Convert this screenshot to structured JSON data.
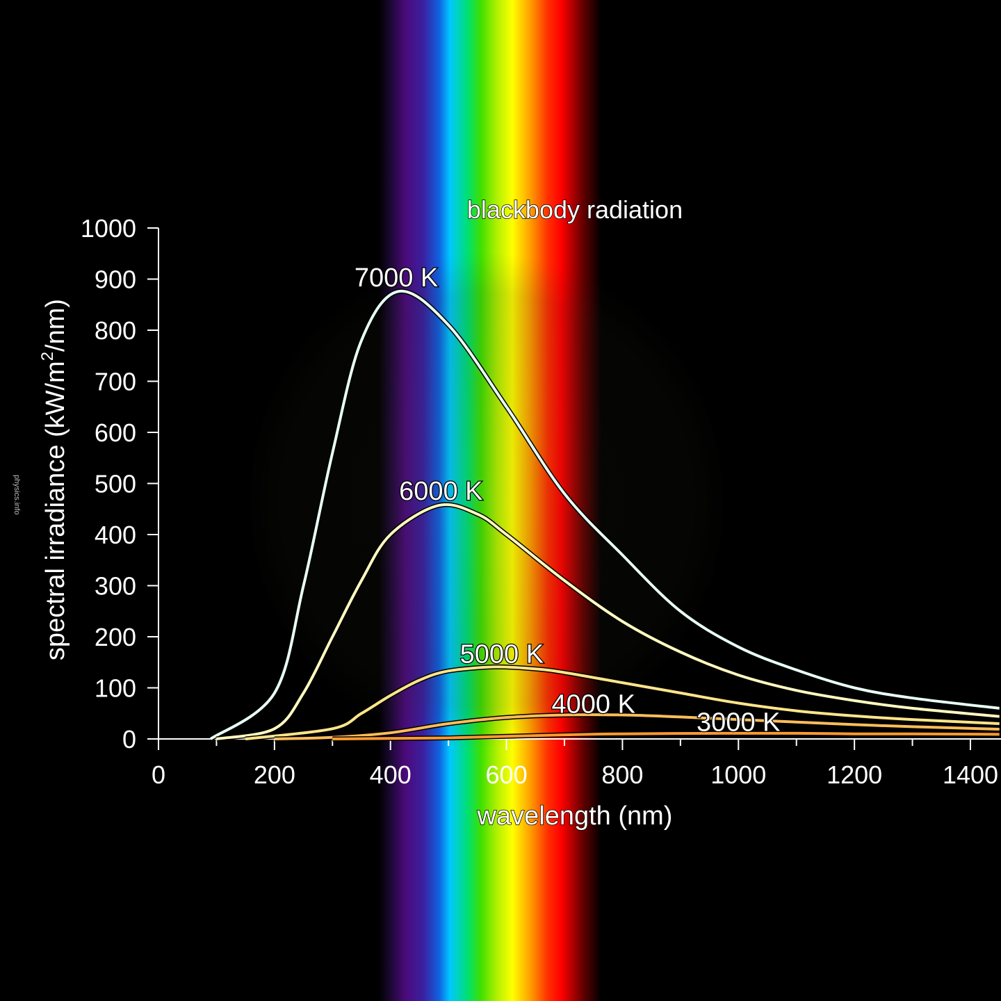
{
  "credit": "physics.info",
  "colors": {
    "background": "#000000",
    "axis": "#ffffff",
    "series_7000": "#e8fff4",
    "series_6000": "#fff9c0",
    "series_5000": "#ffe58a",
    "series_4000": "#ffbd5a",
    "series_3000": "#ff9a30"
  },
  "chart_data": {
    "type": "line",
    "title": "blackbody radiation",
    "xlabel": "wavelength (nm)",
    "ylabel_main": "spectral irradiance (kW/m",
    "ylabel_sup": "2",
    "ylabel_tail": "/nm)",
    "xlim": [
      0,
      1450
    ],
    "ylim": [
      0,
      1000
    ],
    "xticks": [
      0,
      200,
      400,
      600,
      800,
      1000,
      1200,
      1400
    ],
    "xtick_labels": [
      "0",
      "200",
      "400",
      "600",
      "800",
      "1000",
      "1200",
      "1400"
    ],
    "xticks_minor": [
      100,
      300,
      500,
      700,
      900,
      1100,
      1300
    ],
    "yticks": [
      0,
      100,
      200,
      300,
      400,
      500,
      600,
      700,
      800,
      900,
      1000
    ],
    "ytick_labels": [
      "0",
      "100",
      "200",
      "300",
      "400",
      "500",
      "600",
      "700",
      "800",
      "900",
      "1000"
    ],
    "series": [
      {
        "name": "7000 K",
        "temperature": 7000,
        "x": [
          90,
          200,
          250,
          300,
          350,
          414,
          500,
          600,
          700,
          800,
          900,
          1000,
          1100,
          1200,
          1300,
          1450
        ],
        "y": [
          0,
          90,
          300,
          560,
          780,
          876,
          810,
          650,
          480,
          360,
          250,
          180,
          135,
          100,
          80,
          60
        ]
      },
      {
        "name": "6000 K",
        "temperature": 6000,
        "x": [
          100,
          200,
          250,
          300,
          350,
          400,
          483,
          550,
          600,
          700,
          800,
          900,
          1000,
          1100,
          1200,
          1300,
          1450
        ],
        "y": [
          0,
          20,
          90,
          200,
          310,
          400,
          457,
          440,
          400,
          310,
          230,
          170,
          125,
          95,
          75,
          60,
          44
        ]
      },
      {
        "name": "5000 K",
        "temperature": 5000,
        "x": [
          150,
          300,
          350,
          400,
          450,
          500,
          580,
          650,
          700,
          800,
          900,
          1000,
          1100,
          1200,
          1300,
          1450
        ],
        "y": [
          0,
          20,
          50,
          85,
          115,
          133,
          141,
          137,
          130,
          110,
          90,
          70,
          55,
          45,
          38,
          30
        ]
      },
      {
        "name": "4000 K",
        "temperature": 4000,
        "x": [
          200,
          300,
          400,
          500,
          600,
          700,
          800,
          900,
          1000,
          1100,
          1200,
          1300,
          1450
        ],
        "y": [
          0,
          3,
          12,
          30,
          42,
          47,
          47,
          43,
          38,
          33,
          28,
          24,
          19
        ]
      },
      {
        "name": "3000 K",
        "temperature": 3000,
        "x": [
          300,
          400,
          500,
          600,
          700,
          800,
          966,
          1100,
          1200,
          1300,
          1450
        ],
        "y": [
          0,
          1,
          2,
          5,
          8,
          10,
          11,
          11,
          10,
          10,
          9
        ]
      }
    ],
    "series_labels_at": [
      {
        "name": "7000 K",
        "x": 410,
        "y": 905
      },
      {
        "name": "6000 K",
        "x": 487,
        "y": 487
      },
      {
        "name": "5000 K",
        "x": 592,
        "y": 168
      },
      {
        "name": "4000 K",
        "x": 750,
        "y": 70
      },
      {
        "name": "3000 K",
        "x": 1000,
        "y": 35
      }
    ],
    "grid": false,
    "legend": "none",
    "background_bands": [
      "visible spectrum 400–760 nm"
    ]
  }
}
